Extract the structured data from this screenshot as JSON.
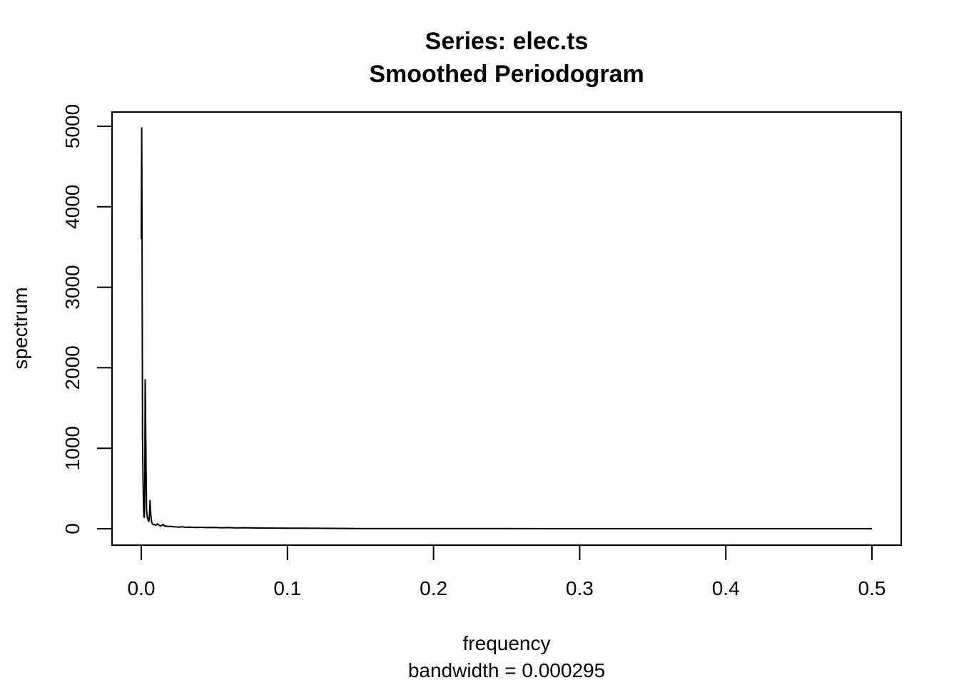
{
  "chart_data": {
    "type": "line",
    "title": "Series: elec.ts",
    "subtitle": "Smoothed Periodogram",
    "xlabel": "frequency",
    "xlabel_sub": "bandwidth = 0.000295",
    "ylabel": "spectrum",
    "xlim": [
      0.0,
      0.5
    ],
    "ylim": [
      0,
      5000
    ],
    "x_ticks": [
      0.0,
      0.1,
      0.2,
      0.3,
      0.4,
      0.5
    ],
    "x_tick_labels": [
      "0.0",
      "0.1",
      "0.2",
      "0.3",
      "0.4",
      "0.5"
    ],
    "y_ticks": [
      0,
      1000,
      2000,
      3000,
      4000,
      5000
    ],
    "y_tick_labels": [
      "0",
      "1000",
      "2000",
      "3000",
      "4000",
      "5000"
    ],
    "grid": false,
    "series": [
      {
        "color": "#000000",
        "x": [
          0.0,
          0.0003,
          0.0006,
          0.0009,
          0.0012,
          0.0015,
          0.0018,
          0.0021,
          0.0024,
          0.0027,
          0.003,
          0.0033,
          0.0036,
          0.0039,
          0.0042,
          0.0045,
          0.0048,
          0.0052,
          0.0056,
          0.006,
          0.0064,
          0.0068,
          0.0072,
          0.0076,
          0.008,
          0.0085,
          0.009,
          0.0095,
          0.01,
          0.011,
          0.012,
          0.013,
          0.014,
          0.015,
          0.016,
          0.017,
          0.018,
          0.02,
          0.022,
          0.024,
          0.026,
          0.028,
          0.03,
          0.033,
          0.036,
          0.04,
          0.045,
          0.05,
          0.055,
          0.06,
          0.065,
          0.07,
          0.08,
          0.09,
          0.1,
          0.11,
          0.12,
          0.13,
          0.15,
          0.2,
          0.25,
          0.3,
          0.35,
          0.4,
          0.45,
          0.5
        ],
        "y": [
          3600,
          4980,
          3200,
          1100,
          600,
          300,
          150,
          140,
          500,
          1850,
          1300,
          700,
          250,
          180,
          130,
          120,
          100,
          90,
          180,
          350,
          200,
          120,
          80,
          60,
          55,
          50,
          55,
          45,
          40,
          60,
          45,
          35,
          40,
          55,
          30,
          35,
          28,
          30,
          25,
          22,
          20,
          25,
          18,
          20,
          15,
          18,
          14,
          16,
          12,
          14,
          10,
          12,
          9,
          8,
          6,
          6,
          5,
          4,
          3,
          2,
          2,
          1,
          1,
          1,
          1,
          1
        ]
      }
    ]
  }
}
